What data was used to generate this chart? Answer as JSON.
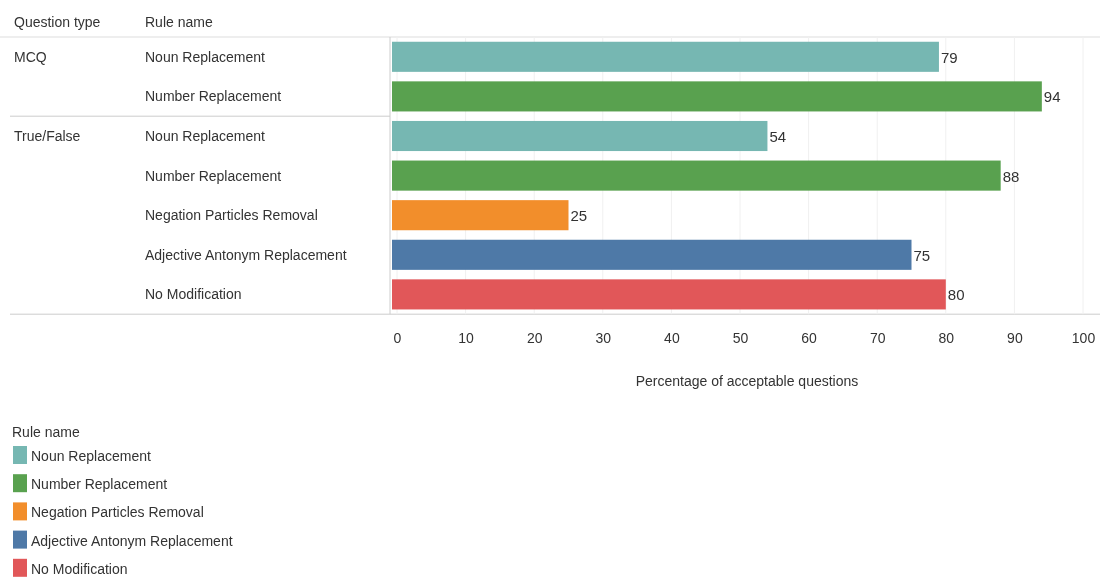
{
  "chart_data": {
    "type": "bar",
    "orientation": "horizontal",
    "ylabel": "Rule name",
    "xlabel": "Percentage of acceptable questions",
    "legend_title": "Rule name",
    "annotations": [
      "Question type",
      "MCQ",
      "True/False"
    ],
    "categories": [
      "Noun Replacement",
      "Number Replacement",
      "Noun Replacement",
      "Number Replacement",
      "Negation Particles Removal",
      "Adjective Antonym Replacement",
      "No Modification"
    ],
    "series": [
      {
        "name": "Noun Replacement",
        "color": "#76b7b2",
        "values": [
          79,
          null,
          54,
          null,
          null,
          null,
          null
        ]
      },
      {
        "name": "Number Replacement",
        "color": "#59a14f",
        "values": [
          null,
          94,
          null,
          88,
          null,
          null,
          null
        ]
      },
      {
        "name": "Negation Particles Removal",
        "color": "#f28e2b",
        "values": [
          null,
          null,
          null,
          null,
          25,
          null,
          null
        ]
      },
      {
        "name": "Adjective Antonym Replacement",
        "color": "#4e79a7",
        "values": [
          null,
          null,
          null,
          null,
          null,
          75,
          null
        ]
      },
      {
        "name": "No Modification",
        "color": "#e15759",
        "values": [
          null,
          null,
          null,
          null,
          null,
          null,
          80
        ]
      }
    ],
    "xlim": [
      0,
      100
    ],
    "xticks": [
      0,
      10,
      20,
      30,
      40,
      50,
      60,
      70,
      80,
      90,
      100
    ],
    "grid": "x",
    "data_labels": true,
    "legend": "bottom left"
  }
}
